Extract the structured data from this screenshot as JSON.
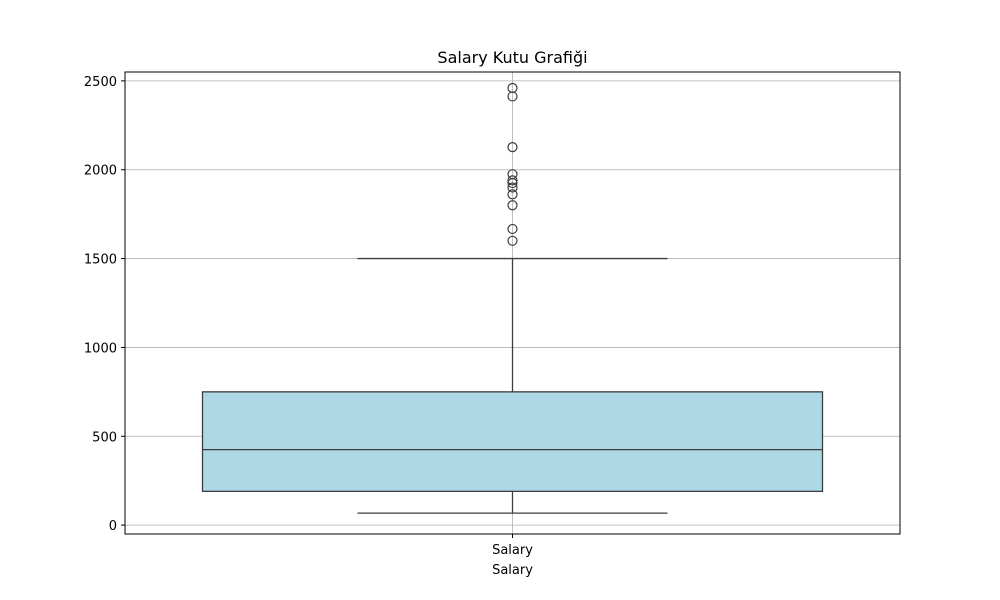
{
  "chart_data": {
    "type": "box",
    "title": "Salary Kutu Grafiği",
    "xlabel": "Salary",
    "ylabel": "",
    "categories": [
      "Salary"
    ],
    "ylim": [
      -50,
      2550
    ],
    "yticks": [
      0,
      500,
      1000,
      1500,
      2000,
      2500
    ],
    "grid": true,
    "box_color": "#add8e6",
    "line_color": "#3d3d3d",
    "series": [
      {
        "category": "Salary",
        "whisker_low": 67.5,
        "q1": 190,
        "median": 425,
        "q3": 750,
        "whisker_high": 1500,
        "outliers": [
          1600,
          1666.7,
          1800,
          1861.1,
          1900,
          1925,
          1940,
          1975,
          2127.3,
          2412.5,
          2460
        ]
      }
    ]
  }
}
